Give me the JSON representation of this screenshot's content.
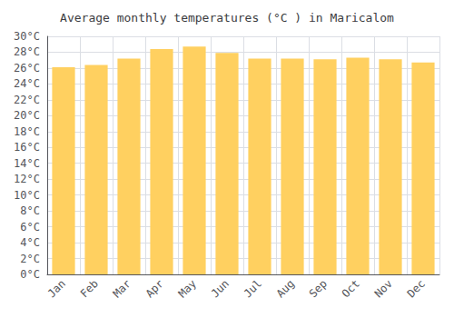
{
  "chart_data": {
    "type": "bar",
    "title": "Average monthly temperatures (°C ) in Maricalom",
    "categories": [
      "Jan",
      "Feb",
      "Mar",
      "Apr",
      "May",
      "Jun",
      "Jul",
      "Aug",
      "Sep",
      "Oct",
      "Nov",
      "Dec"
    ],
    "values": [
      26.1,
      26.4,
      27.2,
      28.4,
      28.7,
      27.9,
      27.2,
      27.2,
      27.1,
      27.3,
      27.1,
      26.7
    ],
    "color": "#FFD060",
    "ylim": [
      0,
      30
    ],
    "yticks": [
      {
        "value": 0,
        "label": "0°C"
      },
      {
        "value": 2,
        "label": "2°C"
      },
      {
        "value": 4,
        "label": "4°C"
      },
      {
        "value": 6,
        "label": "6°C"
      },
      {
        "value": 8,
        "label": "8°C"
      },
      {
        "value": 10,
        "label": "10°C"
      },
      {
        "value": 12,
        "label": "12°C"
      },
      {
        "value": 14,
        "label": "14°C"
      },
      {
        "value": 16,
        "label": "16°C"
      },
      {
        "value": 18,
        "label": "18°C"
      },
      {
        "value": 20,
        "label": "20°C"
      },
      {
        "value": 22,
        "label": "22°C"
      },
      {
        "value": 24,
        "label": "24°C"
      },
      {
        "value": 26,
        "label": "26°C"
      },
      {
        "value": 28,
        "label": "28°C"
      },
      {
        "value": 30,
        "label": "30°C"
      }
    ],
    "grid": true
  }
}
